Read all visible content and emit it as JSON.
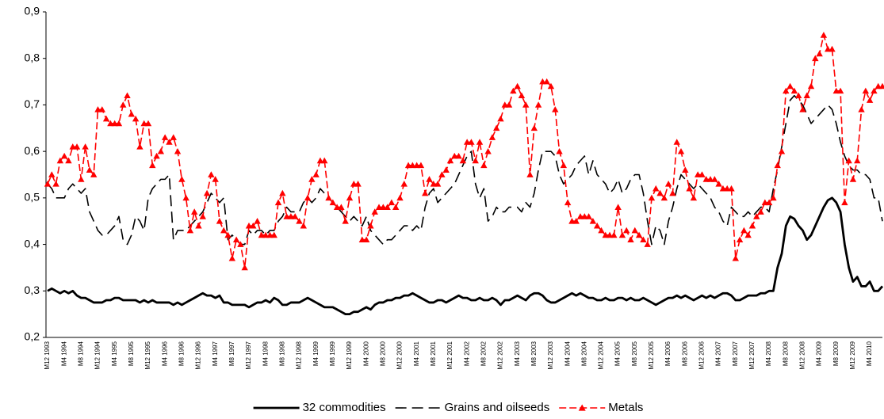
{
  "chart_data": {
    "type": "line",
    "categories": [
      "M12 1993",
      null,
      null,
      null,
      "M4 1994",
      null,
      null,
      null,
      "M8 1994",
      null,
      null,
      null,
      "M12 1994",
      null,
      null,
      null,
      "M4 1995",
      null,
      null,
      null,
      "M8 1995",
      null,
      null,
      null,
      "M12 1995",
      null,
      null,
      null,
      "M4 1996",
      null,
      null,
      null,
      "M8 1996",
      null,
      null,
      null,
      "M12 1996",
      null,
      null,
      null,
      "M4 1997",
      null,
      null,
      null,
      "M8 1997",
      null,
      null,
      null,
      "M12 1997",
      null,
      null,
      null,
      "M4 1998",
      null,
      null,
      null,
      "M8 1998",
      null,
      null,
      null,
      "M12 1998",
      null,
      null,
      null,
      "M4 1999",
      null,
      null,
      null,
      "M8 1999",
      null,
      null,
      null,
      "M12 1999",
      null,
      null,
      null,
      "M4 2000",
      null,
      null,
      null,
      "M8 2000",
      null,
      null,
      null,
      "M12 2000",
      null,
      null,
      null,
      "M4 2001",
      null,
      null,
      null,
      "M8 2001",
      null,
      null,
      null,
      "M12 2001",
      null,
      null,
      null,
      "M4 2002",
      null,
      null,
      null,
      "M8 2002",
      null,
      null,
      null,
      "M12 2002",
      null,
      null,
      null,
      "M4 2003",
      null,
      null,
      null,
      "M8 2003",
      null,
      null,
      null,
      "M12 2003",
      null,
      null,
      null,
      "M4 2004",
      null,
      null,
      null,
      "M8 2004",
      null,
      null,
      null,
      "M12 2004",
      null,
      null,
      null,
      "M4 2005",
      null,
      null,
      null,
      "M8 2005",
      null,
      null,
      null,
      "M12 2005",
      null,
      null,
      null,
      "M4 2006",
      null,
      null,
      null,
      "M8 2006",
      null,
      null,
      null,
      "M12 2006",
      null,
      null,
      null,
      "M4 2007",
      null,
      null,
      null,
      "M8 2007",
      null,
      null,
      null,
      "M12 2007",
      null,
      null,
      null,
      "M4 2008",
      null,
      null,
      null,
      "M8 2008",
      null,
      null,
      null,
      "M12 2008",
      null,
      null,
      null,
      "M4 2009",
      null,
      null,
      null,
      "M8 2009",
      null,
      null,
      null,
      "M12 2009",
      null,
      null,
      null,
      "M4 2010",
      null,
      null,
      null
    ],
    "series": [
      {
        "name": "32 commodities",
        "color": "#000000",
        "line_style": "solid",
        "values": [
          0.3,
          0.305,
          0.3,
          0.295,
          0.3,
          0.295,
          0.3,
          0.29,
          0.285,
          0.285,
          0.28,
          0.275,
          0.275,
          0.275,
          0.28,
          0.28,
          0.285,
          0.285,
          0.28,
          0.28,
          0.28,
          0.28,
          0.275,
          0.28,
          0.275,
          0.28,
          0.275,
          0.275,
          0.275,
          0.275,
          0.27,
          0.275,
          0.27,
          0.275,
          0.28,
          0.285,
          0.29,
          0.295,
          0.29,
          0.29,
          0.285,
          0.29,
          0.275,
          0.275,
          0.27,
          0.27,
          0.27,
          0.27,
          0.265,
          0.27,
          0.275,
          0.275,
          0.28,
          0.275,
          0.285,
          0.28,
          0.27,
          0.27,
          0.275,
          0.275,
          0.275,
          0.28,
          0.285,
          0.28,
          0.275,
          0.27,
          0.265,
          0.265,
          0.265,
          0.26,
          0.255,
          0.25,
          0.25,
          0.255,
          0.255,
          0.26,
          0.265,
          0.26,
          0.27,
          0.275,
          0.275,
          0.28,
          0.28,
          0.285,
          0.285,
          0.29,
          0.29,
          0.295,
          0.29,
          0.285,
          0.28,
          0.275,
          0.275,
          0.28,
          0.28,
          0.275,
          0.28,
          0.285,
          0.29,
          0.285,
          0.285,
          0.28,
          0.28,
          0.285,
          0.28,
          0.28,
          0.285,
          0.28,
          0.27,
          0.28,
          0.28,
          0.285,
          0.29,
          0.285,
          0.28,
          0.29,
          0.295,
          0.295,
          0.29,
          0.28,
          0.275,
          0.275,
          0.28,
          0.285,
          0.29,
          0.295,
          0.29,
          0.295,
          0.29,
          0.285,
          0.285,
          0.28,
          0.28,
          0.285,
          0.28,
          0.28,
          0.285,
          0.285,
          0.28,
          0.285,
          0.28,
          0.28,
          0.285,
          0.28,
          0.275,
          0.27,
          0.275,
          0.28,
          0.285,
          0.285,
          0.29,
          0.285,
          0.29,
          0.285,
          0.28,
          0.285,
          0.29,
          0.285,
          0.29,
          0.285,
          0.29,
          0.295,
          0.295,
          0.29,
          0.28,
          0.28,
          0.285,
          0.29,
          0.29,
          0.29,
          0.295,
          0.295,
          0.3,
          0.3,
          0.35,
          0.38,
          0.44,
          0.46,
          0.455,
          0.44,
          0.43,
          0.41,
          0.42,
          0.44,
          0.46,
          0.48,
          0.495,
          0.5,
          0.49,
          0.47,
          0.4,
          0.35,
          0.32,
          0.33,
          0.31,
          0.31,
          0.32,
          0.3,
          0.3,
          0.31
        ]
      },
      {
        "name": "Grains and oilseeds",
        "color": "#000000",
        "line_style": "dashed",
        "values": [
          0.53,
          0.52,
          0.5,
          0.5,
          0.5,
          0.52,
          0.53,
          0.52,
          0.51,
          0.52,
          0.47,
          0.45,
          0.43,
          0.42,
          0.42,
          0.43,
          0.44,
          0.46,
          0.41,
          0.4,
          0.42,
          0.46,
          0.45,
          0.43,
          0.5,
          0.52,
          0.53,
          0.54,
          0.54,
          0.55,
          0.41,
          0.43,
          0.43,
          0.43,
          0.44,
          0.45,
          0.46,
          0.47,
          0.49,
          0.51,
          0.5,
          0.49,
          0.5,
          0.41,
          0.42,
          0.41,
          0.4,
          0.4,
          0.43,
          0.42,
          0.43,
          0.43,
          0.42,
          0.43,
          0.43,
          0.45,
          0.46,
          0.48,
          0.47,
          0.47,
          0.47,
          0.49,
          0.5,
          0.49,
          0.5,
          0.52,
          0.51,
          0.5,
          0.49,
          0.48,
          0.47,
          0.46,
          0.45,
          0.46,
          0.45,
          0.44,
          0.46,
          0.43,
          0.42,
          0.41,
          0.4,
          0.41,
          0.41,
          0.42,
          0.43,
          0.44,
          0.44,
          0.43,
          0.44,
          0.43,
          0.48,
          0.51,
          0.52,
          0.49,
          0.5,
          0.51,
          0.52,
          0.53,
          0.55,
          0.57,
          0.59,
          0.6,
          0.53,
          0.5,
          0.52,
          0.45,
          0.46,
          0.48,
          0.47,
          0.47,
          0.48,
          0.48,
          0.48,
          0.47,
          0.49,
          0.48,
          0.51,
          0.56,
          0.6,
          0.6,
          0.6,
          0.59,
          0.55,
          0.53,
          0.54,
          0.55,
          0.57,
          0.58,
          0.59,
          0.55,
          0.58,
          0.55,
          0.54,
          0.53,
          0.51,
          0.52,
          0.54,
          0.51,
          0.52,
          0.54,
          0.55,
          0.55,
          0.51,
          0.45,
          0.4,
          0.44,
          0.43,
          0.4,
          0.45,
          0.48,
          0.52,
          0.55,
          0.54,
          0.53,
          0.52,
          0.53,
          0.52,
          0.51,
          0.5,
          0.48,
          0.47,
          0.45,
          0.44,
          0.48,
          0.47,
          0.46,
          0.46,
          0.47,
          0.46,
          0.47,
          0.48,
          0.48,
          0.47,
          0.52,
          0.56,
          0.61,
          0.66,
          0.71,
          0.72,
          0.71,
          0.7,
          0.68,
          0.66,
          0.67,
          0.68,
          0.69,
          0.7,
          0.69,
          0.66,
          0.62,
          0.59,
          0.57,
          0.56,
          0.56,
          0.55,
          0.55,
          0.54,
          0.5,
          0.5,
          0.45
        ]
      },
      {
        "name": "Metals",
        "color": "#ff0000",
        "line_style": "dashed",
        "marker": "triangle",
        "values": [
          0.53,
          0.55,
          0.53,
          0.58,
          0.59,
          0.58,
          0.61,
          0.61,
          0.54,
          0.61,
          0.56,
          0.55,
          0.69,
          0.69,
          0.67,
          0.66,
          0.66,
          0.66,
          0.7,
          0.72,
          0.68,
          0.67,
          0.61,
          0.66,
          0.66,
          0.57,
          0.59,
          0.6,
          0.63,
          0.62,
          0.63,
          0.6,
          0.54,
          0.5,
          0.43,
          0.47,
          0.44,
          0.46,
          0.51,
          0.55,
          0.54,
          0.45,
          0.43,
          0.42,
          0.37,
          0.41,
          0.4,
          0.35,
          0.44,
          0.44,
          0.45,
          0.42,
          0.42,
          0.42,
          0.42,
          0.49,
          0.51,
          0.46,
          0.46,
          0.46,
          0.45,
          0.44,
          0.5,
          0.54,
          0.55,
          0.58,
          0.58,
          0.5,
          0.49,
          0.48,
          0.48,
          0.45,
          0.5,
          0.53,
          0.53,
          0.41,
          0.41,
          0.44,
          0.47,
          0.48,
          0.48,
          0.48,
          0.49,
          0.48,
          0.5,
          0.53,
          0.57,
          0.57,
          0.57,
          0.57,
          0.51,
          0.54,
          0.53,
          0.53,
          0.55,
          0.56,
          0.58,
          0.59,
          0.59,
          0.58,
          0.62,
          0.62,
          0.58,
          0.62,
          0.57,
          0.6,
          0.63,
          0.65,
          0.67,
          0.7,
          0.7,
          0.73,
          0.74,
          0.72,
          0.7,
          0.55,
          0.65,
          0.7,
          0.75,
          0.75,
          0.74,
          0.69,
          0.6,
          0.57,
          0.49,
          0.45,
          0.45,
          0.46,
          0.46,
          0.46,
          0.45,
          0.44,
          0.43,
          0.42,
          0.42,
          0.42,
          0.48,
          0.42,
          0.43,
          0.41,
          0.43,
          0.42,
          0.41,
          0.4,
          0.5,
          0.52,
          0.51,
          0.5,
          0.53,
          0.51,
          0.62,
          0.6,
          0.56,
          0.52,
          0.5,
          0.55,
          0.55,
          0.54,
          0.54,
          0.54,
          0.53,
          0.52,
          0.52,
          0.52,
          0.37,
          0.41,
          0.43,
          0.42,
          0.44,
          0.46,
          0.47,
          0.49,
          0.49,
          0.5,
          0.57,
          0.6,
          0.73,
          0.74,
          0.73,
          0.72,
          0.69,
          0.72,
          0.74,
          0.8,
          0.81,
          0.85,
          0.82,
          0.82,
          0.73,
          0.73,
          0.49,
          0.58,
          0.54,
          0.58,
          0.69,
          0.73,
          0.71,
          0.73,
          0.74,
          0.74
        ]
      }
    ],
    "ylim": [
      0.2,
      0.9
    ],
    "yticks": [
      {
        "value": 0.2,
        "label": "0,2"
      },
      {
        "value": 0.3,
        "label": "0,3"
      },
      {
        "value": 0.4,
        "label": "0,4"
      },
      {
        "value": 0.5,
        "label": "0,5"
      },
      {
        "value": 0.6,
        "label": "0,6"
      },
      {
        "value": 0.7,
        "label": "0,7"
      },
      {
        "value": 0.8,
        "label": "0,8"
      },
      {
        "value": 0.9,
        "label": "0,9"
      }
    ],
    "grid": false,
    "legend": "bottom"
  }
}
